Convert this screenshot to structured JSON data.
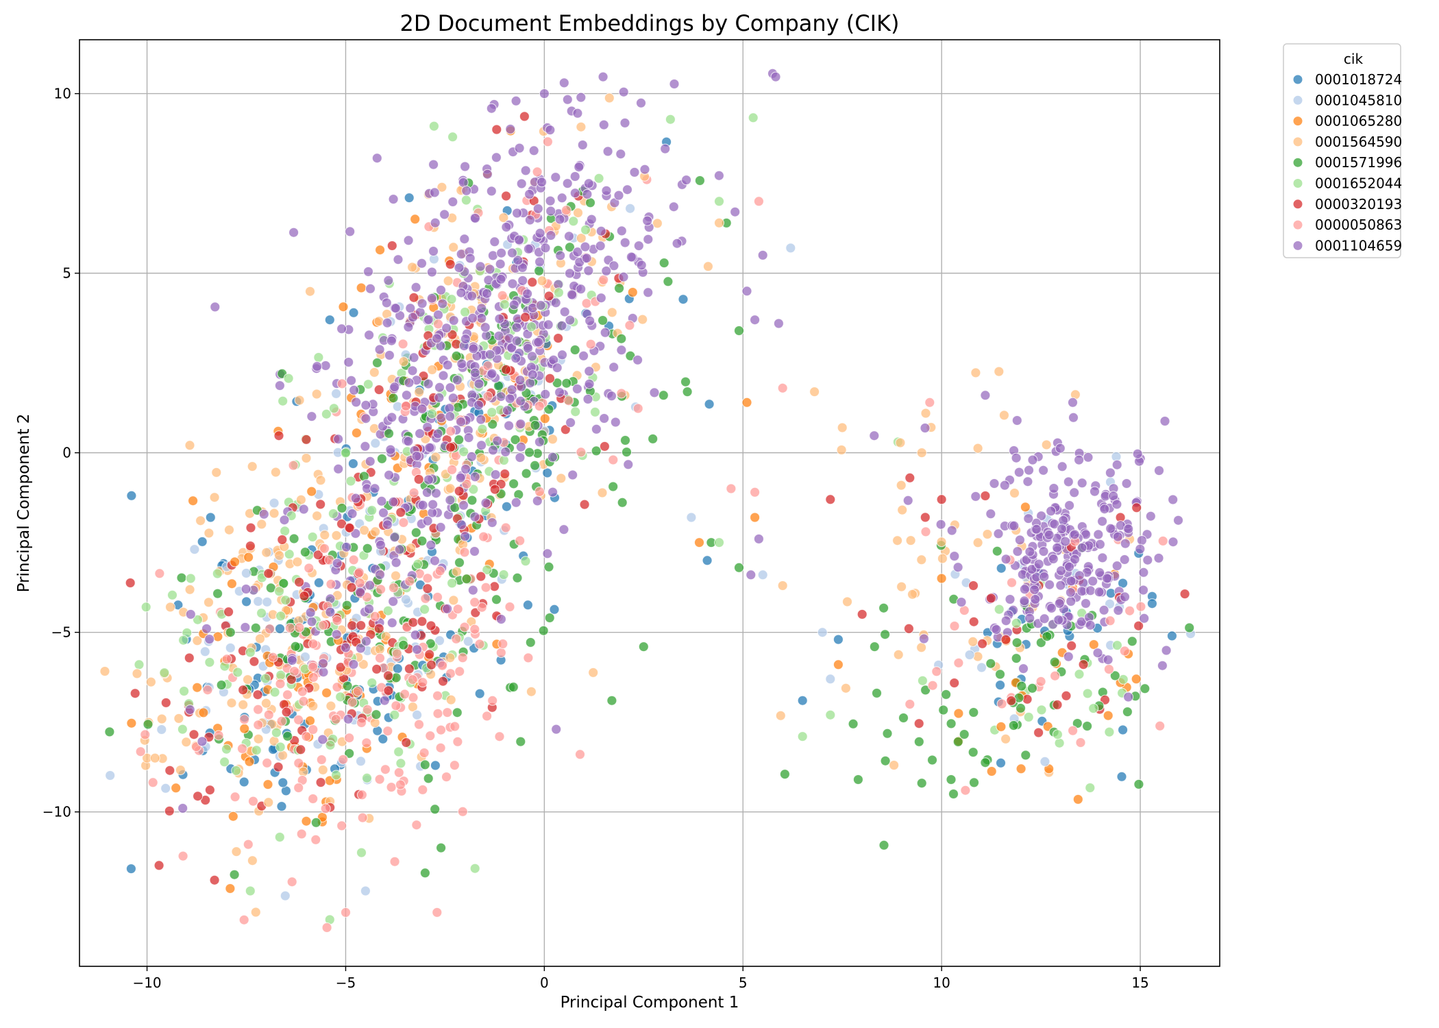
{
  "chart_data": {
    "type": "scatter",
    "title": "2D Document Embeddings by Company (CIK)",
    "xlabel": "Principal Component 1",
    "ylabel": "Principal Component 2",
    "xlim": [
      -11.7,
      17.0
    ],
    "ylim": [
      -14.3,
      11.5
    ],
    "xticks": [
      -10,
      -5,
      0,
      5,
      10,
      15
    ],
    "yticks": [
      -10,
      -5,
      0,
      5,
      10
    ],
    "grid": true,
    "legend": {
      "title": "cik",
      "placement": "outside-upper-right"
    },
    "series": [
      {
        "name": "0001018724",
        "color": "#1f77b4",
        "clusters": [
          {
            "cx": -5.3,
            "cy": -5.6,
            "sx": 1.9,
            "sy": 2.6,
            "n": 90,
            "rot": -0.55
          },
          {
            "cx": -1.5,
            "cy": 1.5,
            "sx": 1.6,
            "sy": 3.0,
            "n": 35,
            "rot": -0.45
          },
          {
            "cx": 13.0,
            "cy": -4.5,
            "sx": 1.3,
            "sy": 1.6,
            "n": 22,
            "rot": 0
          }
        ],
        "points": [
          [
            -4.8,
            3.9
          ],
          [
            -5.4,
            3.7
          ],
          [
            -8.4,
            -1.8
          ],
          [
            15.3,
            -4.0
          ],
          [
            15.3,
            -4.2
          ],
          [
            15.8,
            -5.1
          ],
          [
            6.5,
            -6.9
          ],
          [
            7.4,
            -5.2
          ],
          [
            4.1,
            -3.0
          ],
          [
            -3.4,
            7.1
          ]
        ]
      },
      {
        "name": "0001045810",
        "color": "#aec7e8",
        "clusters": [
          {
            "cx": -5.2,
            "cy": -5.0,
            "sx": 1.9,
            "sy": 2.8,
            "n": 80,
            "rot": -0.55
          },
          {
            "cx": -1.8,
            "cy": 1.8,
            "sx": 1.6,
            "sy": 3.0,
            "n": 40,
            "rot": -0.45
          },
          {
            "cx": 12.6,
            "cy": -4.0,
            "sx": 1.4,
            "sy": 1.9,
            "n": 25,
            "rot": 0
          }
        ],
        "points": [
          [
            6.2,
            5.7
          ],
          [
            -6.8,
            -1.4
          ],
          [
            5.5,
            -3.4
          ],
          [
            3.7,
            -1.8
          ],
          [
            7.0,
            -5.0
          ],
          [
            7.2,
            -6.3
          ],
          [
            12.6,
            -8.6
          ],
          [
            -4.5,
            -12.2
          ]
        ]
      },
      {
        "name": "0001065280",
        "color": "#ff7f0e",
        "clusters": [
          {
            "cx": -5.8,
            "cy": -6.2,
            "sx": 1.9,
            "sy": 2.4,
            "n": 70,
            "rot": -0.55
          },
          {
            "cx": -1.7,
            "cy": 2.0,
            "sx": 1.6,
            "sy": 3.0,
            "n": 40,
            "rot": -0.45
          },
          {
            "cx": 12.8,
            "cy": -6.0,
            "sx": 1.5,
            "sy": 1.7,
            "n": 18,
            "rot": 0
          }
        ],
        "points": [
          [
            5.1,
            1.4
          ],
          [
            3.9,
            -2.5
          ],
          [
            5.3,
            -1.8
          ],
          [
            7.4,
            -5.9
          ],
          [
            10.0,
            -3.5
          ],
          [
            12.7,
            -8.8
          ],
          [
            12.0,
            -8.8
          ],
          [
            -6.7,
            0.6
          ],
          [
            14.7,
            -5.6
          ],
          [
            14.9,
            -6.3
          ],
          [
            14.5,
            -6.4
          ]
        ]
      },
      {
        "name": "0001564590",
        "color": "#ffbb78",
        "clusters": [
          {
            "cx": -5.6,
            "cy": -4.4,
            "sx": 2.0,
            "sy": 3.0,
            "n": 170,
            "rot": -0.55
          },
          {
            "cx": -1.5,
            "cy": 2.8,
            "sx": 1.7,
            "sy": 3.0,
            "n": 130,
            "rot": -0.45
          },
          {
            "cx": 10.5,
            "cy": -3.2,
            "sx": 1.8,
            "sy": 2.6,
            "n": 45,
            "rot": 0
          }
        ],
        "points": [
          [
            6.8,
            1.7
          ],
          [
            7.5,
            0.7
          ],
          [
            6.0,
            -3.7
          ],
          [
            4.4,
            6.4
          ],
          [
            -9.8,
            -8.5
          ],
          [
            -10.0,
            -8.5
          ],
          [
            -9.2,
            -7.4
          ],
          [
            9.6,
            1.1
          ],
          [
            12.7,
            -8.9
          ],
          [
            8.8,
            -8.7
          ],
          [
            9.5,
            0.0
          ]
        ]
      },
      {
        "name": "0001571996",
        "color": "#2ca02c",
        "clusters": [
          {
            "cx": -4.0,
            "cy": -4.0,
            "sx": 1.8,
            "sy": 3.0,
            "n": 110,
            "rot": -0.55
          },
          {
            "cx": -0.8,
            "cy": 1.8,
            "sx": 1.7,
            "sy": 3.0,
            "n": 120,
            "rot": -0.45
          },
          {
            "cx": 11.8,
            "cy": -6.5,
            "sx": 1.9,
            "sy": 1.5,
            "n": 65,
            "rot": 0
          }
        ],
        "points": [
          [
            4.9,
            3.4
          ],
          [
            3.6,
            1.7
          ],
          [
            3.0,
            1.6
          ],
          [
            -2.6,
            -11.0
          ],
          [
            -3.0,
            -11.7
          ],
          [
            1.7,
            -6.9
          ],
          [
            2.5,
            -5.4
          ],
          [
            4.2,
            -2.5
          ],
          [
            4.9,
            -3.2
          ],
          [
            7.9,
            -9.1
          ],
          [
            9.5,
            -9.2
          ],
          [
            10.3,
            -9.5
          ],
          [
            -7.9,
            -5.0
          ],
          [
            -6.6,
            2.2
          ]
        ]
      },
      {
        "name": "0001652044",
        "color": "#98df8a",
        "clusters": [
          {
            "cx": -5.5,
            "cy": -5.0,
            "sx": 2.0,
            "sy": 3.0,
            "n": 110,
            "rot": -0.55
          },
          {
            "cx": -1.7,
            "cy": 2.5,
            "sx": 1.7,
            "sy": 3.0,
            "n": 75,
            "rot": -0.45
          },
          {
            "cx": 12.4,
            "cy": -6.2,
            "sx": 1.8,
            "sy": 1.6,
            "n": 22,
            "rot": 0
          }
        ],
        "points": [
          [
            -10.2,
            -5.9
          ],
          [
            -8.9,
            -3.5
          ],
          [
            4.4,
            7.0
          ],
          [
            6.5,
            -7.9
          ],
          [
            7.2,
            -7.3
          ],
          [
            8.9,
            0.3
          ],
          [
            4.4,
            -2.5
          ],
          [
            -7.4,
            -12.2
          ],
          [
            -5.4,
            -13.0
          ]
        ]
      },
      {
        "name": "0000320193",
        "color": "#d62728",
        "clusters": [
          {
            "cx": -5.4,
            "cy": -5.2,
            "sx": 1.9,
            "sy": 2.8,
            "n": 110,
            "rot": -0.55
          },
          {
            "cx": -1.6,
            "cy": 1.8,
            "sx": 1.7,
            "sy": 3.0,
            "n": 70,
            "rot": -0.45
          },
          {
            "cx": 12.6,
            "cy": -4.8,
            "sx": 1.6,
            "sy": 1.7,
            "n": 25,
            "rot": 0
          }
        ],
        "points": [
          [
            -10.3,
            -6.7
          ],
          [
            -8.3,
            -11.9
          ],
          [
            8.0,
            -4.5
          ],
          [
            7.2,
            -1.3
          ],
          [
            9.2,
            -0.7
          ],
          [
            10.0,
            -1.3
          ],
          [
            11.1,
            -1.2
          ],
          [
            10.8,
            -3.7
          ],
          [
            -1.2,
            9.0
          ],
          [
            14.5,
            -1.8
          ]
        ]
      },
      {
        "name": "0000050863",
        "color": "#ff9896",
        "clusters": [
          {
            "cx": -4.6,
            "cy": -6.4,
            "sx": 2.0,
            "sy": 2.6,
            "n": 170,
            "rot": -0.55
          },
          {
            "cx": -1.5,
            "cy": 2.4,
            "sx": 1.7,
            "sy": 3.0,
            "n": 65,
            "rot": -0.45
          },
          {
            "cx": 12.4,
            "cy": -5.2,
            "sx": 1.7,
            "sy": 2.0,
            "n": 25,
            "rot": 0
          }
        ],
        "points": [
          [
            5.4,
            7.0
          ],
          [
            6.0,
            1.8
          ],
          [
            5.3,
            -1.1
          ],
          [
            4.7,
            -1.0
          ],
          [
            9.7,
            1.4
          ],
          [
            9.6,
            -2.2
          ],
          [
            10.6,
            -9.4
          ],
          [
            -2.7,
            -12.8
          ],
          [
            -5.0,
            -12.8
          ],
          [
            0.9,
            -8.4
          ],
          [
            9.2,
            -7.0
          ]
        ]
      },
      {
        "name": "0001104659",
        "color": "#9467bd",
        "clusters": [
          {
            "cx": -1.0,
            "cy": 4.0,
            "sx": 1.7,
            "sy": 3.2,
            "n": 440,
            "rot": -0.45
          },
          {
            "cx": -3.5,
            "cy": -1.5,
            "sx": 1.6,
            "sy": 3.0,
            "n": 130,
            "rot": -0.55
          },
          {
            "cx": 13.2,
            "cy": -3.0,
            "sx": 0.9,
            "sy": 1.3,
            "n": 200,
            "rot": 0
          },
          {
            "cx": 13.0,
            "cy": -2.0,
            "sx": 1.7,
            "sy": 2.0,
            "n": 60,
            "rot": 0
          }
        ],
        "points": [
          [
            0.0,
            10.0
          ],
          [
            0.5,
            10.3
          ],
          [
            5.5,
            5.5
          ],
          [
            5.9,
            3.6
          ],
          [
            5.3,
            3.7
          ],
          [
            5.1,
            4.5
          ],
          [
            5.2,
            -3.4
          ],
          [
            5.4,
            -2.4
          ],
          [
            11.1,
            1.6
          ],
          [
            13.3,
            1.4
          ],
          [
            11.9,
            0.9
          ],
          [
            -8.9,
            -4.5
          ],
          [
            -8.5,
            -4.9
          ],
          [
            -9.1,
            -9.9
          ],
          [
            14.7,
            -6.8
          ],
          [
            0.3,
            -7.7
          ]
        ]
      }
    ]
  }
}
